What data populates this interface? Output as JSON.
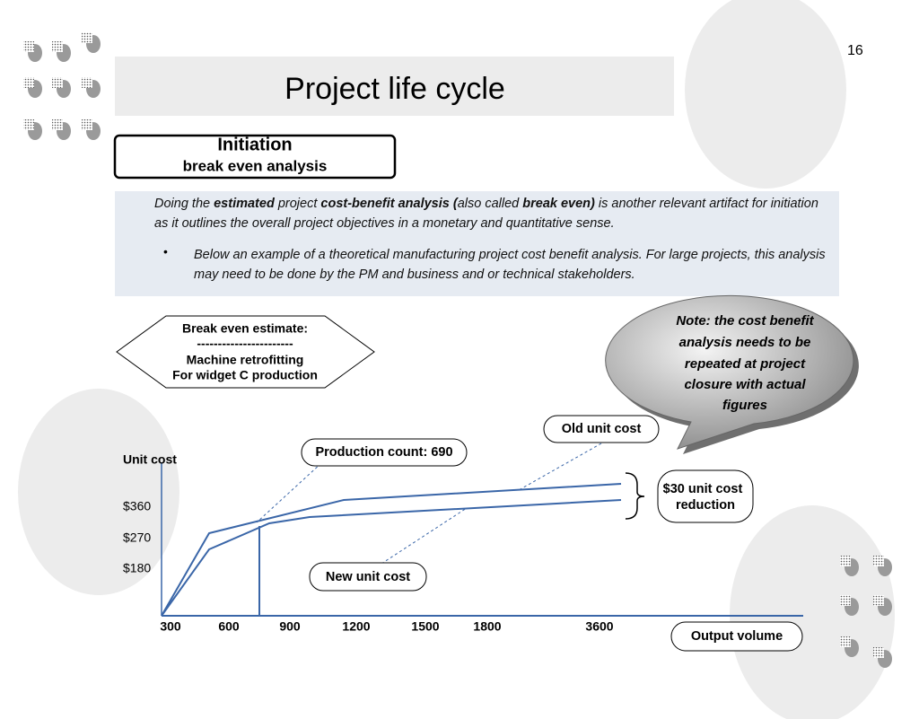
{
  "page_number": "16",
  "title": "Project life cycle",
  "section": {
    "heading": "Initiation",
    "subheading": "break even analysis"
  },
  "intro": [
    {
      "text": "Doing the "
    },
    {
      "text": "estimated",
      "bold": true
    },
    {
      "text": " project "
    },
    {
      "text": "cost-benefit analysis (",
      "bold": true
    },
    {
      "text": "also called "
    },
    {
      "text": "break even)",
      "bold": true
    },
    {
      "text": " is another relevant artifact for initiation as it outlines the overall project objectives in a monetary and quantitative sense."
    }
  ],
  "bullet": "Below an example of a theoretical manufacturing project cost benefit analysis. For large projects, this analysis may need to be done by the PM and business and or technical stakeholders.",
  "estimate_box": [
    "Break even estimate:",
    "-----------------------",
    "Machine retrofitting",
    "For widget C production"
  ],
  "note": [
    "Note: the cost benefit",
    "analysis needs to be",
    "repeated at project",
    "closure with actual",
    "figures"
  ],
  "diagram": {
    "y_axis_label": "Unit cost",
    "y_labels": [
      "$360",
      "$270",
      "$180"
    ],
    "x_labels": [
      "300",
      "600",
      "900",
      "1200",
      "1500",
      "1800",
      "3600"
    ],
    "x_axis_label": "Output volume",
    "production_count": "Production count: 690",
    "old_cost": "Old unit cost",
    "new_cost": "New unit cost",
    "reduction": [
      "$30 unit cost",
      "reduction"
    ]
  }
}
